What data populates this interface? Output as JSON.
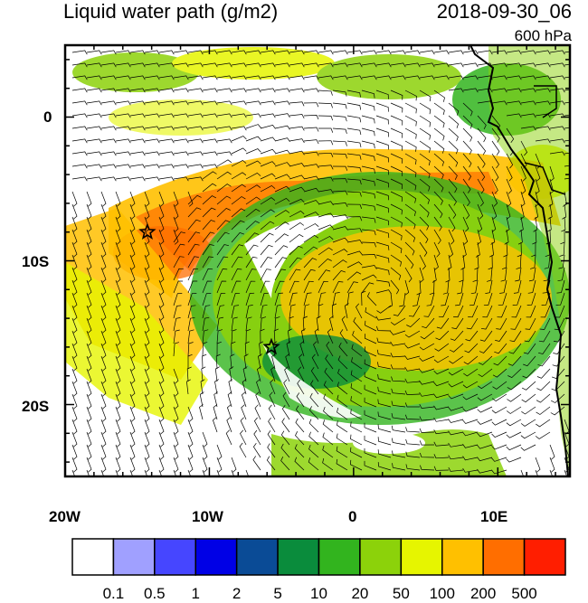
{
  "header": {
    "title": "Liquid water path (g/m2)",
    "datetime": "2018-09-30_06",
    "level": "600 hPa"
  },
  "axes": {
    "x_tick_labels": [
      "20W",
      "10W",
      "0",
      "10E"
    ],
    "y_tick_labels": [
      "0",
      "10S",
      "20S"
    ],
    "lon_range": [
      -20,
      15
    ],
    "lat_range": [
      -25,
      5
    ]
  },
  "colorbar": {
    "labels": [
      "0.1",
      "0.5",
      "1",
      "2",
      "5",
      "10",
      "20",
      "50",
      "100",
      "200",
      "500"
    ],
    "colors": [
      "#ffffff",
      "#a0a0ff",
      "#4646ff",
      "#0000e6",
      "#0a4b96",
      "#0a8c3c",
      "#32b41e",
      "#8cd20a",
      "#e6f500",
      "#ffc000",
      "#ff6e00",
      "#ff1e00"
    ]
  },
  "markers": [
    {
      "name": "star-marker-west",
      "lon": -14.3,
      "lat": -8.0
    },
    {
      "name": "star-marker-center",
      "lon": -5.7,
      "lat": -16.0
    }
  ]
}
